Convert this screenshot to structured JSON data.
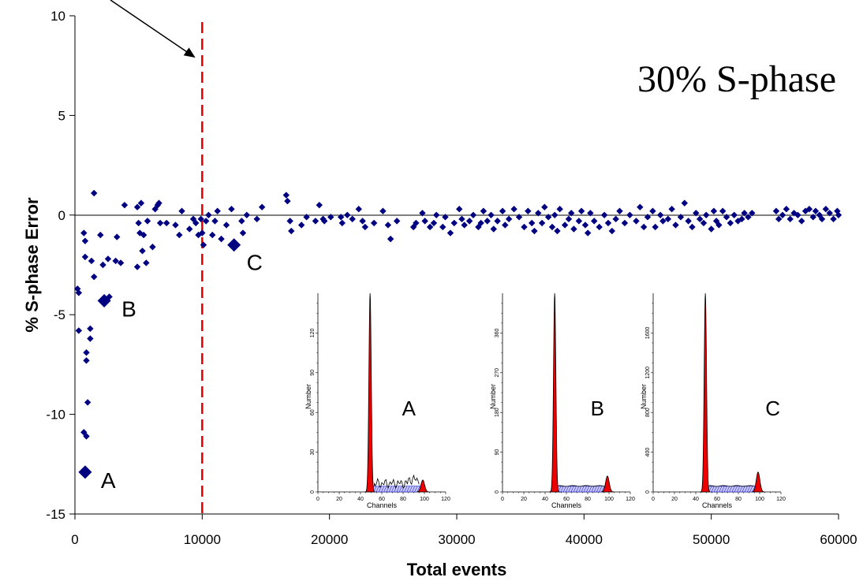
{
  "chart_data": {
    "type": "scatter",
    "title": "30% S-phase",
    "xlabel": "Total events",
    "ylabel": "% S-phase Error",
    "xlim": [
      0,
      60000
    ],
    "ylim": [
      -15,
      10
    ],
    "x_ticks": [
      "0",
      "10000",
      "20000",
      "30000",
      "40000",
      "50000",
      "60000"
    ],
    "y_ticks": [
      "10",
      "5",
      "0",
      "-5",
      "-10",
      "-15"
    ],
    "marker_color": "#000080",
    "cutoff_line": {
      "x": 10000,
      "color": "#e00000",
      "style": "dashed"
    },
    "highlighted_points": [
      {
        "label": "A",
        "x": 800,
        "y": -12.9
      },
      {
        "label": "B",
        "x": 2300,
        "y": -4.3
      },
      {
        "label": "C",
        "x": 12500,
        "y": -1.5
      }
    ],
    "insets": [
      {
        "label": "A",
        "xlabel": "Channels",
        "ylabel": "Number",
        "x_ticks": [
          "0",
          "20",
          "40",
          "60",
          "80",
          "100",
          "120"
        ],
        "y_ticks": [
          "0",
          "30",
          "60",
          "90",
          "120"
        ]
      },
      {
        "label": "B",
        "xlabel": "Channels",
        "ylabel": "Number",
        "x_ticks": [
          "0",
          "20",
          "40",
          "60",
          "80",
          "100",
          "120"
        ],
        "y_ticks": [
          "0",
          "90",
          "180",
          "270",
          "360"
        ]
      },
      {
        "label": "C",
        "xlabel": "Channels",
        "ylabel": "Number",
        "x_ticks": [
          "0",
          "20",
          "40",
          "60",
          "80",
          "100",
          "120"
        ],
        "y_ticks": [
          "0",
          "400",
          "800",
          "1200",
          "1600"
        ]
      }
    ],
    "series": [
      {
        "values": [
          [
            200,
            -3.7
          ],
          [
            300,
            -3.9
          ],
          [
            300,
            -5.8
          ],
          [
            700,
            -0.9
          ],
          [
            800,
            -1.3
          ],
          [
            800,
            -2.1
          ],
          [
            900,
            -6.9
          ],
          [
            900,
            -7.3
          ],
          [
            700,
            -10.9
          ],
          [
            900,
            -11.1
          ],
          [
            1000,
            -9.4
          ],
          [
            1200,
            -5.7
          ],
          [
            1200,
            -6.2
          ],
          [
            1300,
            -2.3
          ],
          [
            1500,
            1.1
          ],
          [
            1500,
            -3.1
          ],
          [
            2000,
            -1.0
          ],
          [
            2200,
            -2.5
          ],
          [
            2600,
            -2.2
          ],
          [
            2700,
            -4.1
          ],
          [
            3200,
            -2.3
          ],
          [
            3300,
            -1.1
          ],
          [
            3600,
            -2.4
          ],
          [
            3900,
            0.5
          ],
          [
            4900,
            0.4
          ],
          [
            4900,
            -2.6
          ],
          [
            5000,
            -0.4
          ],
          [
            5100,
            -0.9
          ],
          [
            5200,
            0.6
          ],
          [
            5300,
            -1.8
          ],
          [
            5400,
            -1.0
          ],
          [
            5600,
            -2.4
          ],
          [
            5700,
            -0.3
          ],
          [
            6100,
            -1.6
          ],
          [
            6300,
            0.3
          ],
          [
            6500,
            0.5
          ],
          [
            6600,
            0.6
          ],
          [
            6700,
            -0.4
          ],
          [
            7200,
            -0.4
          ],
          [
            7900,
            -0.5
          ],
          [
            8200,
            -1.0
          ],
          [
            8400,
            0.2
          ],
          [
            9000,
            -0.7
          ],
          [
            9300,
            -0.2
          ],
          [
            9500,
            -0.4
          ],
          [
            9700,
            -1.0
          ],
          [
            9900,
            -0.2
          ],
          [
            10000,
            -0.9
          ],
          [
            10100,
            -1.5
          ],
          [
            10300,
            -0.3
          ],
          [
            10500,
            0.0
          ],
          [
            10800,
            -1.0
          ],
          [
            11000,
            -0.3
          ],
          [
            11200,
            0.2
          ],
          [
            11500,
            -1.2
          ],
          [
            11900,
            -0.5
          ],
          [
            12300,
            0.3
          ],
          [
            13100,
            -0.3
          ],
          [
            13200,
            -0.9
          ],
          [
            13500,
            0.0
          ],
          [
            14300,
            -0.2
          ],
          [
            14700,
            0.4
          ],
          [
            16600,
            1.0
          ],
          [
            16700,
            0.7
          ],
          [
            16900,
            -0.3
          ],
          [
            17000,
            -0.8
          ],
          [
            17800,
            -0.5
          ],
          [
            18200,
            -0.1
          ],
          [
            18900,
            -0.3
          ],
          [
            19200,
            0.5
          ],
          [
            19500,
            -0.2
          ],
          [
            19600,
            -0.3
          ],
          [
            20100,
            -0.1
          ],
          [
            20900,
            -0.1
          ],
          [
            21000,
            -0.4
          ],
          [
            21400,
            0.0
          ],
          [
            21800,
            -0.2
          ],
          [
            22300,
            0.3
          ],
          [
            22600,
            -0.3
          ],
          [
            22800,
            -0.6
          ],
          [
            23500,
            -0.4
          ],
          [
            24200,
            0.2
          ],
          [
            24600,
            -0.5
          ],
          [
            24800,
            -1.2
          ],
          [
            25300,
            -0.3
          ],
          [
            26600,
            -0.6
          ],
          [
            26800,
            -0.4
          ],
          [
            27300,
            0.1
          ],
          [
            27500,
            -0.3
          ],
          [
            27900,
            -0.6
          ],
          [
            28200,
            -0.4
          ],
          [
            28400,
            0.0
          ],
          [
            28900,
            -0.6
          ],
          [
            29100,
            -0.1
          ],
          [
            29500,
            -0.9
          ],
          [
            29800,
            -0.4
          ],
          [
            30200,
            0.3
          ],
          [
            30400,
            -0.2
          ],
          [
            30600,
            -0.5
          ],
          [
            31000,
            -0.3
          ],
          [
            31300,
            0.0
          ],
          [
            31700,
            -0.6
          ],
          [
            31900,
            -0.4
          ],
          [
            32100,
            0.2
          ],
          [
            32400,
            -0.3
          ],
          [
            32700,
            0.0
          ],
          [
            32900,
            -0.7
          ],
          [
            33200,
            -0.3
          ],
          [
            33600,
            0.2
          ],
          [
            33800,
            -0.5
          ],
          [
            34100,
            -0.2
          ],
          [
            34500,
            0.3
          ],
          [
            34900,
            -0.1
          ],
          [
            35300,
            -0.6
          ],
          [
            35600,
            0.2
          ],
          [
            35900,
            -0.4
          ],
          [
            36100,
            -0.8
          ],
          [
            36400,
            0.1
          ],
          [
            36700,
            -0.4
          ],
          [
            36900,
            0.4
          ],
          [
            37200,
            -0.1
          ],
          [
            37500,
            -0.6
          ],
          [
            37700,
            0.0
          ],
          [
            37900,
            -0.8
          ],
          [
            38100,
            0.3
          ],
          [
            38500,
            -0.5
          ],
          [
            38800,
            -0.2
          ],
          [
            39000,
            0.1
          ],
          [
            39200,
            -0.7
          ],
          [
            39600,
            -0.3
          ],
          [
            39800,
            0.2
          ],
          [
            40100,
            -0.5
          ],
          [
            40300,
            -0.9
          ],
          [
            40500,
            0.1
          ],
          [
            40800,
            -0.3
          ],
          [
            41200,
            -0.6
          ],
          [
            41600,
            0.0
          ],
          [
            41900,
            -0.4
          ],
          [
            42200,
            -0.8
          ],
          [
            42500,
            -0.2
          ],
          [
            42800,
            0.2
          ],
          [
            43200,
            -0.4
          ],
          [
            43600,
            0.0
          ],
          [
            44100,
            -0.3
          ],
          [
            44400,
            0.4
          ],
          [
            44700,
            -0.6
          ],
          [
            45000,
            -0.1
          ],
          [
            45400,
            0.2
          ],
          [
            45600,
            -0.6
          ],
          [
            46000,
            0.0
          ],
          [
            46200,
            -0.3
          ],
          [
            46600,
            -0.2
          ],
          [
            46900,
            0.3
          ],
          [
            47200,
            -0.5
          ],
          [
            47600,
            -0.1
          ],
          [
            47900,
            0.6
          ],
          [
            48200,
            -0.3
          ],
          [
            48500,
            -0.6
          ],
          [
            48800,
            0.1
          ],
          [
            49100,
            -0.2
          ],
          [
            49400,
            -0.4
          ],
          [
            49600,
            0.0
          ],
          [
            50000,
            -0.7
          ],
          [
            50200,
            0.2
          ],
          [
            50400,
            -0.3
          ],
          [
            50600,
            -0.5
          ],
          [
            50900,
            0.2
          ],
          [
            51200,
            -0.1
          ],
          [
            51500,
            -0.4
          ],
          [
            51800,
            0.0
          ],
          [
            52100,
            -0.3
          ],
          [
            52400,
            -0.2
          ],
          [
            52600,
            0.1
          ],
          [
            52900,
            -0.1
          ],
          [
            53200,
            0.1
          ],
          [
            55100,
            0.2
          ],
          [
            55300,
            -0.2
          ],
          [
            55600,
            0.0
          ],
          [
            55900,
            0.3
          ],
          [
            56200,
            -0.2
          ],
          [
            56500,
            0.1
          ],
          [
            56800,
            0.0
          ],
          [
            57100,
            -0.3
          ],
          [
            57400,
            0.2
          ],
          [
            57700,
            0.3
          ],
          [
            58000,
            -0.1
          ],
          [
            58200,
            0.2
          ],
          [
            58500,
            0.0
          ],
          [
            58700,
            -0.2
          ],
          [
            59000,
            0.3
          ],
          [
            59300,
            0.1
          ],
          [
            59600,
            -0.2
          ],
          [
            59900,
            0.2
          ],
          [
            60000,
            0.0
          ]
        ]
      }
    ]
  }
}
